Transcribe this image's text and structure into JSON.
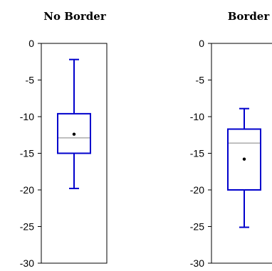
{
  "chart_data": [
    {
      "type": "box",
      "title": "No Border",
      "ylim": [
        -30,
        0
      ],
      "yticks": [
        0,
        -5,
        -10,
        -15,
        -20,
        -25,
        -30
      ],
      "ytick_labels": [
        "0",
        "-5",
        "-10",
        "-15",
        "-20",
        "-25",
        "-30"
      ],
      "box": {
        "whisker_high": -2.2,
        "q3": -9.6,
        "median": -12.9,
        "q1": -15.0,
        "whisker_low": -19.8,
        "mean": -12.4
      },
      "box_color": "#0000cc",
      "median_color": "#808080",
      "mean_marker_color": "#000000",
      "grid": false
    },
    {
      "type": "box",
      "title": "Border",
      "ylim": [
        -30,
        0
      ],
      "yticks": [
        0,
        -5,
        -10,
        -15,
        -20,
        -25,
        -30
      ],
      "ytick_labels": [
        "0",
        "-5",
        "-10",
        "-15",
        "-20",
        "-25",
        "-30"
      ],
      "box": {
        "whisker_high": -8.9,
        "q3": -11.7,
        "median": -13.6,
        "q1": -20.0,
        "whisker_low": -25.1,
        "mean": -15.8
      },
      "box_color": "#0000cc",
      "median_color": "#808080",
      "mean_marker_color": "#000000",
      "grid": false
    }
  ]
}
